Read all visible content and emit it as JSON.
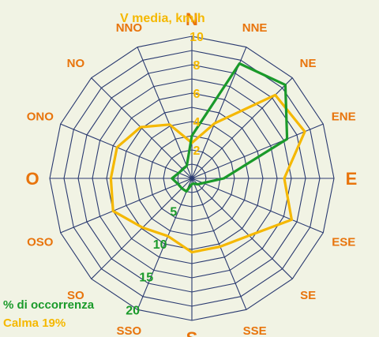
{
  "chart_data": {
    "type": "radar",
    "title": "",
    "directions": [
      "N",
      "NNE",
      "NE",
      "ENE",
      "E",
      "ESE",
      "SE",
      "SSE",
      "S",
      "SSO",
      "SO",
      "OSO",
      "O",
      "ONO",
      "NO",
      "NNO"
    ],
    "series": [
      {
        "name": "V media, km/h",
        "color": "#f5b800",
        "values": [
          2.5,
          4.2,
          8.3,
          8.6,
          6.5,
          7.6,
          5.7,
          5.2,
          5.2,
          4.4,
          4.9,
          6.0,
          5.7,
          5.7,
          5.1,
          4.1
        ],
        "scale_labels": [
          "2",
          "4",
          "6",
          "8",
          "10"
        ],
        "range": [
          0,
          10
        ]
      },
      {
        "name": "% di occorrenza",
        "color": "#1a9a2a",
        "values": [
          6.0,
          17.5,
          18.6,
          14.5,
          4.5,
          1.7,
          1.2,
          0.8,
          0.8,
          2.0,
          2.0,
          2.1,
          2.8,
          2.0,
          1.8,
          1.9
        ],
        "scale_labels": [
          "5",
          "10",
          "15",
          "20"
        ],
        "range": [
          0,
          20
        ]
      }
    ],
    "calm_text": "Calma  19%",
    "grid": true,
    "rings": 10
  },
  "colors": {
    "direction_label": "#e8740c",
    "grid": "#2a3a70",
    "background": "#f1f3e4"
  }
}
